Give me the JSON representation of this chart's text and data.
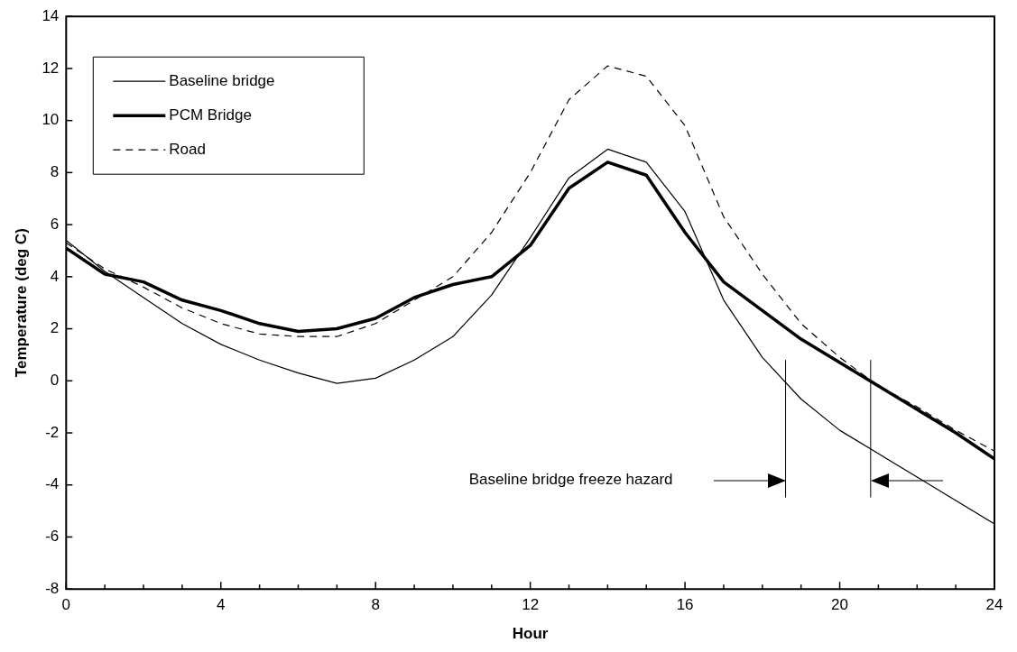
{
  "chart_data": {
    "type": "line",
    "xlabel": "Hour",
    "ylabel": "Temperature (deg C)",
    "x": [
      0,
      1,
      2,
      3,
      4,
      5,
      6,
      7,
      8,
      9,
      10,
      11,
      12,
      13,
      14,
      15,
      16,
      17,
      18,
      19,
      20,
      21,
      22,
      23,
      24
    ],
    "series": [
      {
        "name": "Baseline bridge",
        "color": "#000000",
        "line_style": "solid",
        "values": [
          5.4,
          4.2,
          3.2,
          2.2,
          1.4,
          0.8,
          0.3,
          -0.1,
          0.1,
          0.8,
          1.7,
          3.3,
          5.5,
          7.8,
          8.9,
          8.4,
          6.5,
          3.1,
          0.9,
          -0.7,
          -1.9,
          -2.8,
          -3.7,
          -4.6,
          -5.5
        ]
      },
      {
        "name": "PCM Bridge",
        "color": "#000000",
        "line_style": "solid",
        "values": [
          5.1,
          4.1,
          3.8,
          3.1,
          2.7,
          2.2,
          1.9,
          2.0,
          2.4,
          3.2,
          3.7,
          4.0,
          5.2,
          7.4,
          8.4,
          7.9,
          5.7,
          3.8,
          2.7,
          1.6,
          0.7,
          -0.2,
          -1.1,
          -2.0,
          -3.0
        ]
      },
      {
        "name": "Road",
        "color": "#000000",
        "line_style": "dashed",
        "values": [
          5.3,
          4.3,
          3.6,
          2.8,
          2.2,
          1.8,
          1.7,
          1.7,
          2.2,
          3.1,
          4.0,
          5.7,
          8.0,
          10.8,
          12.1,
          11.7,
          9.8,
          6.3,
          4.1,
          2.2,
          0.9,
          -0.2,
          -1.0,
          -1.9,
          -2.7
        ]
      }
    ],
    "xlim": [
      0,
      24
    ],
    "xticks": [
      0,
      {
        "value": 1,
        "label": null
      },
      {
        "value": 2,
        "label": null
      },
      {
        "value": 3,
        "label": null
      },
      4,
      {
        "value": 5,
        "label": null
      },
      {
        "value": 6,
        "label": null
      },
      {
        "value": 7,
        "label": null
      },
      8,
      {
        "value": 9,
        "label": null
      },
      {
        "value": 10,
        "label": null
      },
      {
        "value": 11,
        "label": null
      },
      12,
      {
        "value": 13,
        "label": null
      },
      {
        "value": 14,
        "label": null
      },
      {
        "value": 15,
        "label": null
      },
      16,
      {
        "value": 17,
        "label": null
      },
      {
        "value": 18,
        "label": null
      },
      {
        "value": 19,
        "label": null
      },
      20,
      {
        "value": 21,
        "label": null
      },
      {
        "value": 22,
        "label": null
      },
      {
        "value": 23,
        "label": null
      },
      24
    ],
    "ylim": [
      -8,
      14
    ],
    "yticks": [
      -8,
      -6,
      -4,
      -2,
      0,
      2,
      4,
      6,
      8,
      10,
      12,
      14
    ],
    "ref_lines": [
      {
        "axis": "x",
        "value": 18.6,
        "color": "#000000"
      },
      {
        "axis": "x",
        "value": 20.8,
        "color": "#000000"
      }
    ],
    "annotations": [
      "Baseline bridge freeze hazard"
    ],
    "legend": "top left",
    "grid": false,
    "marker": "none"
  }
}
